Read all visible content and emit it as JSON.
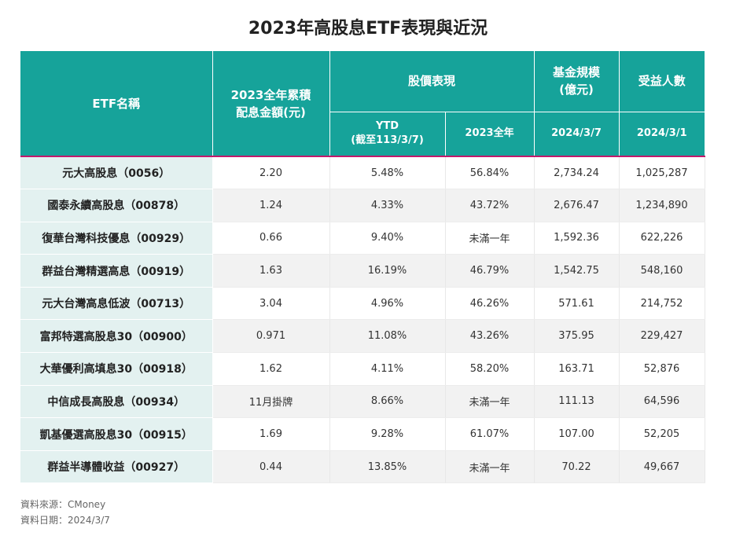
{
  "title": "2023年高股息ETF表現與近況",
  "headers": {
    "name": "ETF名稱",
    "dividend_line1": "2023全年累積",
    "dividend_line2": "配息金額(元)",
    "price": "股價表現",
    "fund_line1": "基金規模",
    "fund_line2": "(億元)",
    "holders": "受益人數",
    "ytd_line1": "YTD",
    "ytd_line2": "(截至113/3/7)",
    "full_year": "2023全年",
    "fund_date": "2024/3/7",
    "holders_date": "2024/3/1"
  },
  "rows": [
    {
      "name": "元大高股息（0056）",
      "dividend": "2.20",
      "ytd": "5.48%",
      "year": "56.84%",
      "fund": "2,734.24",
      "holders": "1,025,287"
    },
    {
      "name": "國泰永續高股息（00878）",
      "dividend": "1.24",
      "ytd": "4.33%",
      "year": "43.72%",
      "fund": "2,676.47",
      "holders": "1,234,890"
    },
    {
      "name": "復華台灣科技優息（00929）",
      "dividend": "0.66",
      "ytd": "9.40%",
      "year": "未滿一年",
      "fund": "1,592.36",
      "holders": "622,226"
    },
    {
      "name": "群益台灣精選高息（00919）",
      "dividend": "1.63",
      "ytd": "16.19%",
      "year": "46.79%",
      "fund": "1,542.75",
      "holders": "548,160"
    },
    {
      "name": "元大台灣高息低波（00713）",
      "dividend": "3.04",
      "ytd": "4.96%",
      "year": "46.26%",
      "fund": "571.61",
      "holders": "214,752"
    },
    {
      "name": "富邦特選高股息30（00900）",
      "dividend": "0.971",
      "ytd": "11.08%",
      "year": "43.26%",
      "fund": "375.95",
      "holders": "229,427"
    },
    {
      "name": "大華優利高填息30（00918）",
      "dividend": "1.62",
      "ytd": "4.11%",
      "year": "58.20%",
      "fund": "163.71",
      "holders": "52,876"
    },
    {
      "name": "中信成長高股息（00934）",
      "dividend": "11月掛牌",
      "ytd": "8.66%",
      "year": "未滿一年",
      "fund": "111.13",
      "holders": "64,596"
    },
    {
      "name": "凱基優選高股息30（00915）",
      "dividend": "1.69",
      "ytd": "9.28%",
      "year": "61.07%",
      "fund": "107.00",
      "holders": "52,205"
    },
    {
      "name": "群益半導體收益（00927）",
      "dividend": "0.44",
      "ytd": "13.85%",
      "year": "未滿一年",
      "fund": "70.22",
      "holders": "49,667"
    }
  ],
  "footer": {
    "source": "資料來源：CMoney",
    "date": "資料日期：2024/3/7"
  }
}
